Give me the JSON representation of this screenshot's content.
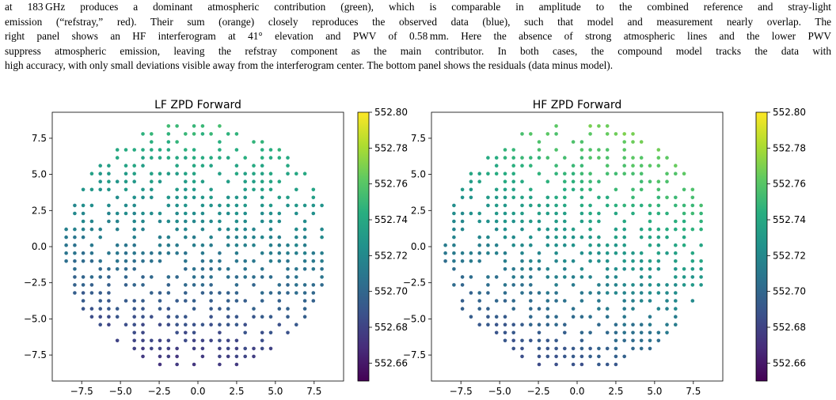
{
  "paragraph_lines": [
    "at 183 GHz produces a dominant atmospheric contribution (green), which is comparable in amplitude to the combined reference and stray-light",
    "emission (“refstray,” red). Their sum (orange) closely reproduces the observed data (blue), such that model and measurement nearly overlap. The",
    "right panel shows an HF interferogram at 41° elevation and PWV of 0.58 mm. Here the absence of strong atmospheric lines and the lower PWV",
    "suppress atmospheric emission, leaving the refstray component as the main contributor. In both cases, the compound model tracks the data with",
    "high accuracy, with only small deviations visible away from the interferogram center. The bottom panel shows the residuals (data minus model)."
  ],
  "chart_data": [
    {
      "type": "scatter",
      "title": "LF ZPD Forward",
      "colormap": "viridis",
      "xlim": [
        -9.4,
        9.4
      ],
      "ylim": [
        -9.3,
        9.3
      ],
      "xticks": [
        "−7.5",
        "−5.0",
        "−2.5",
        "0.0",
        "2.5",
        "5.0",
        "7.5"
      ],
      "yticks": [
        "7.5",
        "5.0",
        "2.5",
        "0.0",
        "−2.5",
        "−5.0",
        "−7.5"
      ],
      "colorbar": {
        "min": 552.65,
        "max": 552.8,
        "ticks": [
          "552.80",
          "552.78",
          "552.76",
          "552.74",
          "552.72",
          "552.70",
          "552.68",
          "552.66"
        ]
      },
      "point_grid": {
        "x_range": [
          -8.5,
          8.5
        ],
        "y_range": [
          -8.7,
          8.9
        ],
        "step": 0.55,
        "radius": 8.6
      },
      "value_model": {
        "a": 552.712,
        "bx": 0.0005,
        "by": 0.0046
      }
    },
    {
      "type": "scatter",
      "title": "HF ZPD Forward",
      "colormap": "viridis",
      "xlim": [
        -9.4,
        9.4
      ],
      "ylim": [
        -9.3,
        9.3
      ],
      "xticks": [
        "−7.5",
        "−5.0",
        "−2.5",
        "0.0",
        "2.5",
        "5.0",
        "7.5"
      ],
      "yticks": [
        "7.5",
        "5.0",
        "2.5",
        "0.0",
        "−2.5",
        "−5.0",
        "−7.5"
      ],
      "colorbar": {
        "min": 552.65,
        "max": 552.8,
        "ticks": [
          "552.80",
          "552.78",
          "552.76",
          "552.74",
          "552.72",
          "552.70",
          "552.68",
          "552.66"
        ]
      },
      "point_grid": {
        "x_range": [
          -8.5,
          8.5
        ],
        "y_range": [
          -8.7,
          8.9
        ],
        "step": 0.55,
        "radius": 8.6
      },
      "value_model": {
        "a": 552.726,
        "bx": 0.0018,
        "by": 0.0046
      }
    }
  ]
}
